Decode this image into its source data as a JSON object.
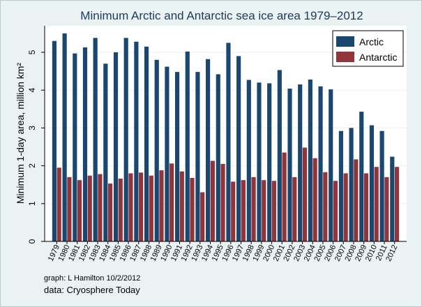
{
  "chart_data": {
    "type": "bar",
    "title": "Minimum Arctic and Antarctic sea ice area 1979–2012",
    "ylabel": "Minimum 1-day area, million km²",
    "xlabel": "",
    "ylim": [
      0,
      5.7
    ],
    "yticks": [
      0,
      1,
      2,
      3,
      4,
      5
    ],
    "grid": true,
    "legend_position": "top-right",
    "categories": [
      "1979",
      "1980",
      "1981",
      "1982",
      "1983",
      "1984",
      "1985",
      "1986",
      "1987",
      "1988",
      "1989",
      "1990",
      "1991",
      "1992",
      "1993",
      "1994",
      "1995",
      "1996",
      "1997",
      "1998",
      "1999",
      "2000",
      "2001",
      "2002",
      "2003",
      "2004",
      "2005",
      "2006",
      "2007",
      "2008",
      "2009",
      "2010",
      "2011",
      "2012"
    ],
    "series": [
      {
        "name": "Arctic",
        "color": "#1a476f",
        "values": [
          5.3,
          5.5,
          4.97,
          5.13,
          5.38,
          4.7,
          5.0,
          5.38,
          5.28,
          5.15,
          4.8,
          4.62,
          4.48,
          5.02,
          4.48,
          4.82,
          4.42,
          5.25,
          4.9,
          4.27,
          4.2,
          4.18,
          4.53,
          4.04,
          4.15,
          4.28,
          4.1,
          4.02,
          2.92,
          3.0,
          3.43,
          3.07,
          2.92,
          2.24
        ]
      },
      {
        "name": "Antarctic",
        "color": "#90353b",
        "values": [
          1.95,
          1.7,
          1.62,
          1.74,
          1.78,
          1.53,
          1.66,
          1.8,
          1.82,
          1.74,
          1.88,
          2.06,
          1.85,
          1.68,
          1.3,
          2.13,
          2.05,
          1.58,
          1.62,
          1.7,
          1.62,
          1.6,
          2.35,
          1.7,
          2.48,
          2.2,
          1.83,
          1.6,
          1.8,
          2.17,
          1.8,
          1.97,
          1.7,
          1.97
        ]
      }
    ]
  },
  "notes": {
    "graph_credit": "graph:  L Hamilton  10/2/2012",
    "data_credit": "data:  Cryosphere Today"
  }
}
